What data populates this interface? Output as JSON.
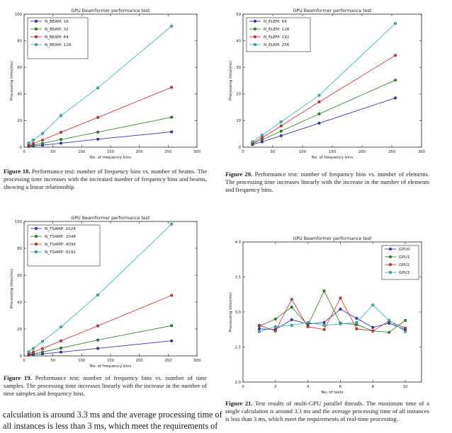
{
  "chart_data": [
    {
      "id": "fig18",
      "type": "line",
      "title": "GPU Beamformer performance test",
      "xlabel": "No. of frequency bins",
      "ylabel": "Processing time(ms)",
      "xlim": [
        0,
        300
      ],
      "ylim": [
        0,
        100
      ],
      "xticks": [
        0,
        50,
        100,
        150,
        200,
        250,
        300
      ],
      "yticks": [
        0,
        20,
        40,
        60,
        80,
        100
      ],
      "grid": false,
      "legend_position": "top-left",
      "x": [
        8,
        16,
        32,
        64,
        128,
        256
      ],
      "series": [
        {
          "name": "N_BEAM: 16",
          "color": "#3333cc",
          "values": [
            0.6,
            0.9,
            1.5,
            3.0,
            6.0,
            11.5
          ]
        },
        {
          "name": "N_BEAM: 32",
          "color": "#2e8b2e",
          "values": [
            1.0,
            1.6,
            2.8,
            5.8,
            11.3,
            22.5
          ]
        },
        {
          "name": "N_BEAM: 64",
          "color": "#dd3333",
          "values": [
            1.6,
            2.8,
            5.3,
            11.2,
            22.3,
            45.0
          ]
        },
        {
          "name": "N_BEAM: 128",
          "color": "#33bbbb",
          "values": [
            3.0,
            5.3,
            10.3,
            23.8,
            44.5,
            91.0
          ]
        }
      ]
    },
    {
      "id": "fig20",
      "type": "line",
      "title": "GPU Beamformer performance test",
      "xlabel": "No. of frequency bins",
      "ylabel": "Processing time(ms)",
      "xlim": [
        0,
        300
      ],
      "ylim": [
        0,
        50
      ],
      "xticks": [
        0,
        50,
        100,
        150,
        200,
        250,
        300
      ],
      "yticks": [
        0,
        10,
        20,
        30,
        40,
        50
      ],
      "grid": false,
      "legend_position": "top-left",
      "x": [
        16,
        32,
        64,
        128,
        256
      ],
      "series": [
        {
          "name": "N_ELEM: 64",
          "color": "#3333cc",
          "values": [
            1.0,
            2.0,
            4.3,
            9.0,
            18.5
          ]
        },
        {
          "name": "N_ELEM: 128",
          "color": "#2e8b2e",
          "values": [
            1.3,
            2.8,
            6.0,
            12.5,
            25.2
          ]
        },
        {
          "name": "N_ELEM: 192",
          "color": "#dd3333",
          "values": [
            1.6,
            3.5,
            8.0,
            17.0,
            34.5
          ]
        },
        {
          "name": "N_ELEM: 256",
          "color": "#33bbbb",
          "values": [
            2.0,
            4.5,
            9.5,
            19.5,
            46.5
          ]
        }
      ]
    },
    {
      "id": "fig19",
      "type": "line",
      "title": "GPU Beamformer performance test",
      "xlabel": "No. of frequency bins",
      "ylabel": "Processing time(ms)",
      "xlim": [
        0,
        300
      ],
      "ylim": [
        0,
        100
      ],
      "xticks": [
        0,
        50,
        100,
        150,
        200,
        250,
        300
      ],
      "yticks": [
        0,
        20,
        40,
        60,
        80,
        100
      ],
      "grid": false,
      "legend_position": "top-left",
      "x": [
        8,
        16,
        32,
        64,
        128,
        256
      ],
      "series": [
        {
          "name": "N_TSAMP: 1024",
          "color": "#3333cc",
          "values": [
            0.6,
            0.9,
            1.5,
            2.8,
            5.6,
            11.2
          ]
        },
        {
          "name": "N_TSAMP: 2048",
          "color": "#2e8b2e",
          "values": [
            1.0,
            1.6,
            2.9,
            5.8,
            11.8,
            22.5
          ]
        },
        {
          "name": "N_TSAMP: 4096",
          "color": "#dd3333",
          "values": [
            1.6,
            2.9,
            5.4,
            11.2,
            22.3,
            45.0
          ]
        },
        {
          "name": "N_TSAMP: 8192",
          "color": "#33bbbb",
          "values": [
            3.0,
            5.5,
            10.8,
            21.5,
            45.3,
            98.0
          ]
        }
      ]
    },
    {
      "id": "fig21",
      "type": "line",
      "title": "GPU Beamformer performance test",
      "xlabel": "No. of tests",
      "ylabel": "Processing time(ms)",
      "xlim": [
        0,
        11
      ],
      "ylim": [
        2.0,
        4.0
      ],
      "xticks": [
        0,
        2,
        4,
        6,
        8,
        10
      ],
      "yticks": [
        2.0,
        2.5,
        3.0,
        3.5,
        4.0
      ],
      "grid": false,
      "legend_position": "top-right",
      "x": [
        1,
        2,
        3,
        4,
        5,
        6,
        7,
        8,
        9,
        10
      ],
      "series": [
        {
          "name": "GPU0",
          "color": "#3333cc",
          "values": [
            2.76,
            2.75,
            2.89,
            2.83,
            2.85,
            3.04,
            2.91,
            2.78,
            2.84,
            2.75
          ]
        },
        {
          "name": "GPU1",
          "color": "#2e8b2e",
          "values": [
            2.8,
            2.9,
            3.07,
            2.81,
            3.3,
            2.84,
            2.82,
            2.73,
            2.71,
            2.88
          ]
        },
        {
          "name": "GPU2",
          "color": "#dd3333",
          "values": [
            2.81,
            2.73,
            3.18,
            2.79,
            2.75,
            3.2,
            2.76,
            2.73,
            2.87,
            2.77
          ]
        },
        {
          "name": "GPU3",
          "color": "#33bbbb",
          "values": [
            2.72,
            2.79,
            2.81,
            2.85,
            2.81,
            2.83,
            2.85,
            3.1,
            2.88,
            2.72
          ]
        }
      ]
    }
  ],
  "captions": {
    "fig18": {
      "label": "Figure 18.",
      "text": "Performance test: number of frequency bins vs. number of beams. The processing time increases with the increased number of frequency bins and beams, showing a linear relationship."
    },
    "fig20": {
      "label": "Figure 20.",
      "text": "Performance test: number of frequency bins vs. number of elements. The processing time increases linearly with the increase in the number of elements and frequency bins."
    },
    "fig19": {
      "label": "Figure 19.",
      "text": "Performance test: number of frequency bins vs. number of time samples. The processing time increases linearly with the increase in the number of time samples and frequency bins."
    },
    "fig21": {
      "label": "Figure 21.",
      "text": "Test results of multi-GPU parallel threads. The maximum time of a single calculation is around 3.3 ms and the average processing time of all instances is less than 3 ms, which meet the requirements of real-time processing."
    }
  },
  "body_text": {
    "line1": "calculation is around 3.3 ms and the average processing time of",
    "line2": "all instances is less than 3 ms, which meet the requirements of"
  }
}
